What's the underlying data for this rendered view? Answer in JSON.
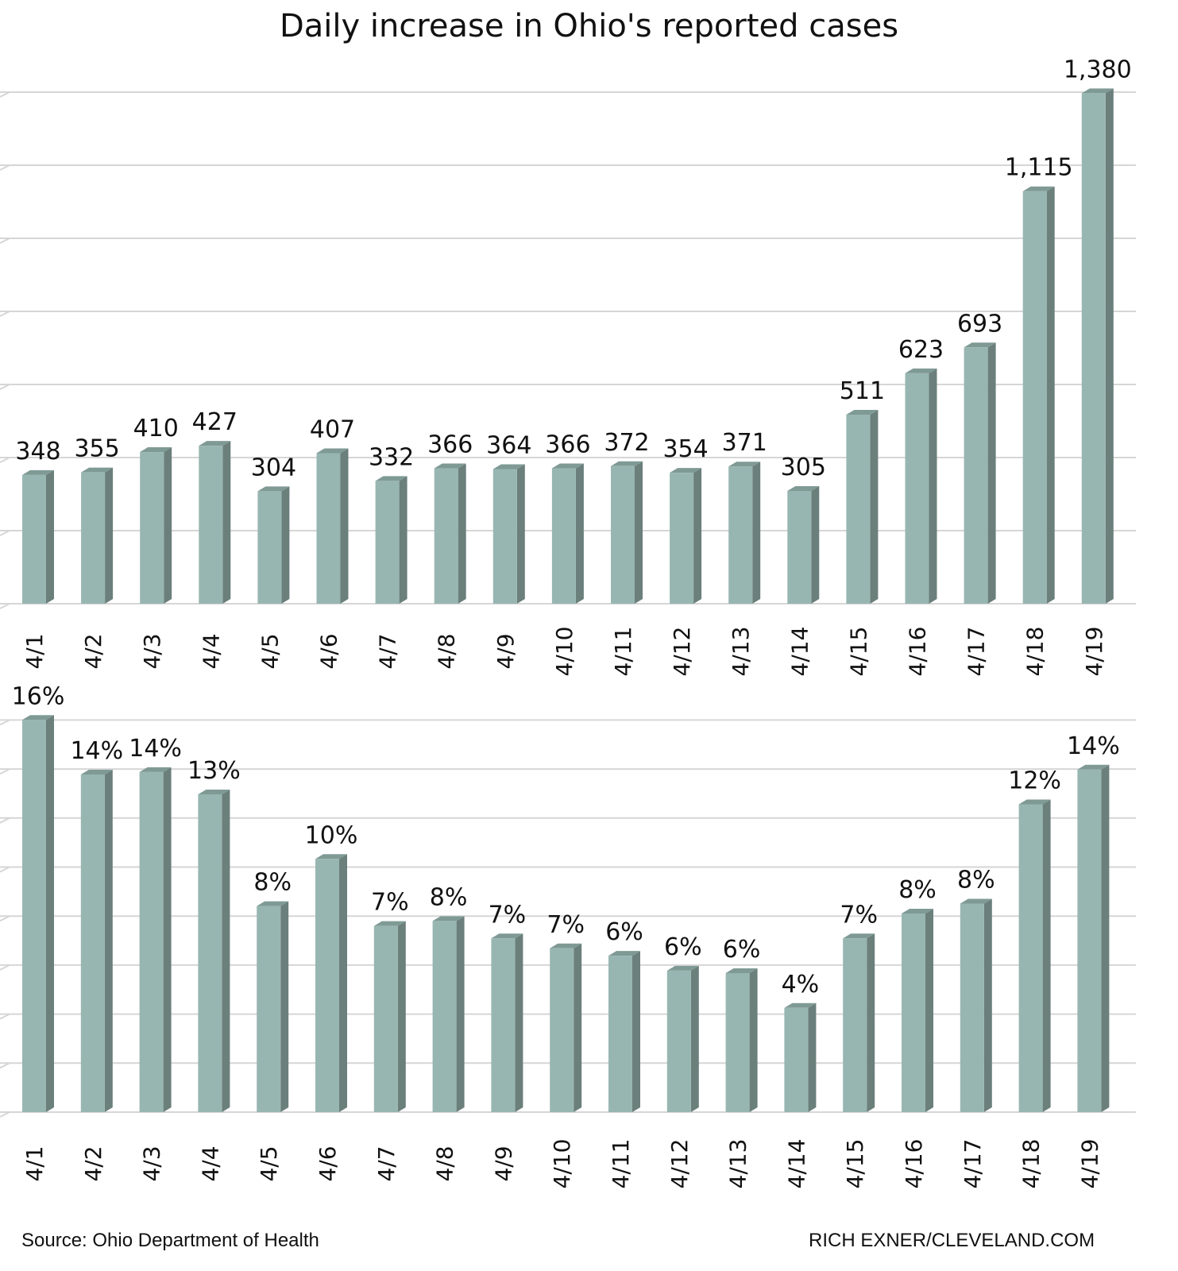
{
  "title": "Daily increase in Ohio's reported cases",
  "footer": {
    "source": "Source: Ohio Department of Health",
    "credit": "RICH EXNER/CLEVELAND.COM"
  },
  "colors": {
    "bar_front": "#98b6b1",
    "bar_side": "#6b7f7b",
    "bar_top": "#7f9a95",
    "gridline": "#d6d6d6"
  },
  "chart_data": [
    {
      "type": "bar",
      "title": "",
      "xlabel": "",
      "ylabel": "",
      "categories": [
        "4/1",
        "4/2",
        "4/3",
        "4/4",
        "4/5",
        "4/6",
        "4/7",
        "4/8",
        "4/9",
        "4/10",
        "4/11",
        "4/12",
        "4/13",
        "4/14",
        "4/15",
        "4/16",
        "4/17",
        "4/18",
        "4/19"
      ],
      "values": [
        348,
        355,
        410,
        427,
        304,
        407,
        332,
        366,
        364,
        366,
        372,
        354,
        371,
        305,
        511,
        623,
        693,
        1115,
        1380
      ],
      "labels": [
        "348",
        "355",
        "410",
        "427",
        "304",
        "407",
        "332",
        "366",
        "364",
        "366",
        "372",
        "354",
        "371",
        "305",
        "511",
        "623",
        "693",
        "1,115",
        "1,380"
      ],
      "ylim": [
        0,
        1400
      ],
      "grid": true,
      "gridlines": 7
    },
    {
      "type": "bar",
      "title": "",
      "xlabel": "",
      "ylabel": "",
      "categories": [
        "4/1",
        "4/2",
        "4/3",
        "4/4",
        "4/5",
        "4/6",
        "4/7",
        "4/8",
        "4/9",
        "4/10",
        "4/11",
        "4/12",
        "4/13",
        "4/14",
        "4/15",
        "4/16",
        "4/17",
        "4/18",
        "4/19"
      ],
      "values": [
        16,
        14,
        14,
        13,
        8,
        10,
        7,
        8,
        7,
        7,
        6,
        6,
        6,
        4,
        7,
        8,
        8,
        12,
        14
      ],
      "plot_values": [
        15.8,
        13.6,
        13.7,
        12.8,
        8.3,
        10.2,
        7.5,
        7.7,
        7.0,
        6.6,
        6.3,
        5.7,
        5.6,
        4.2,
        7.0,
        8.0,
        8.4,
        12.4,
        13.8
      ],
      "labels": [
        "16%",
        "14%",
        "14%",
        "13%",
        "8%",
        "10%",
        "7%",
        "8%",
        "7%",
        "7%",
        "6%",
        "6%",
        "6%",
        "4%",
        "7%",
        "8%",
        "8%",
        "12%",
        "14%"
      ],
      "ylim": [
        0,
        16
      ],
      "grid": true,
      "gridlines": 8
    }
  ]
}
